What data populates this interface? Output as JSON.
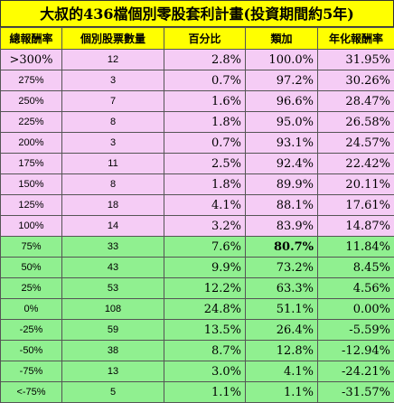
{
  "title": "大叔的436檔個別零股套利計畫(投資期間約5年)",
  "headers": [
    "總報酬率",
    "個別股票數量",
    "百分比",
    "類加",
    "年化報酬率"
  ],
  "rows": [
    {
      "tier": ">300%",
      "count": "12",
      "pct": "2.8%",
      "cum": "100.0%",
      "annual": "31.95%",
      "group": "pink"
    },
    {
      "tier": "275%",
      "count": "3",
      "pct": "0.7%",
      "cum": "97.2%",
      "annual": "30.26%",
      "group": "pink"
    },
    {
      "tier": "250%",
      "count": "7",
      "pct": "1.6%",
      "cum": "96.6%",
      "annual": "28.47%",
      "group": "pink"
    },
    {
      "tier": "225%",
      "count": "8",
      "pct": "1.8%",
      "cum": "95.0%",
      "annual": "26.58%",
      "group": "pink"
    },
    {
      "tier": "200%",
      "count": "3",
      "pct": "0.7%",
      "cum": "93.1%",
      "annual": "24.57%",
      "group": "pink"
    },
    {
      "tier": "175%",
      "count": "11",
      "pct": "2.5%",
      "cum": "92.4%",
      "annual": "22.42%",
      "group": "pink"
    },
    {
      "tier": "150%",
      "count": "8",
      "pct": "1.8%",
      "cum": "89.9%",
      "annual": "20.11%",
      "group": "pink"
    },
    {
      "tier": "125%",
      "count": "18",
      "pct": "4.1%",
      "cum": "88.1%",
      "annual": "17.61%",
      "group": "pink"
    },
    {
      "tier": "100%",
      "count": "14",
      "pct": "3.2%",
      "cum": "83.9%",
      "annual": "14.87%",
      "group": "pink"
    },
    {
      "tier": "75%",
      "count": "33",
      "pct": "7.6%",
      "cum": "80.7%",
      "annual": "11.84%",
      "group": "green",
      "bold_cum": true
    },
    {
      "tier": "50%",
      "count": "43",
      "pct": "9.9%",
      "cum": "73.2%",
      "annual": "8.45%",
      "group": "green"
    },
    {
      "tier": "25%",
      "count": "53",
      "pct": "12.2%",
      "cum": "63.3%",
      "annual": "4.56%",
      "group": "green"
    },
    {
      "tier": "0%",
      "count": "108",
      "pct": "24.8%",
      "cum": "51.1%",
      "annual": "0.00%",
      "group": "green"
    },
    {
      "tier": "-25%",
      "count": "59",
      "pct": "13.5%",
      "cum": "26.4%",
      "annual": "-5.59%",
      "group": "green"
    },
    {
      "tier": "-50%",
      "count": "38",
      "pct": "8.7%",
      "cum": "12.8%",
      "annual": "-12.94%",
      "group": "green"
    },
    {
      "tier": "-75%",
      "count": "13",
      "pct": "3.0%",
      "cum": "4.1%",
      "annual": "-24.21%",
      "group": "green"
    },
    {
      "tier": "<-75%",
      "count": "5",
      "pct": "1.1%",
      "cum": "1.1%",
      "annual": "-31.57%",
      "group": "green"
    }
  ],
  "colors": {
    "header": "#ffff00",
    "upper_rows": "#f5ccf5",
    "lower_rows": "#90f090"
  }
}
